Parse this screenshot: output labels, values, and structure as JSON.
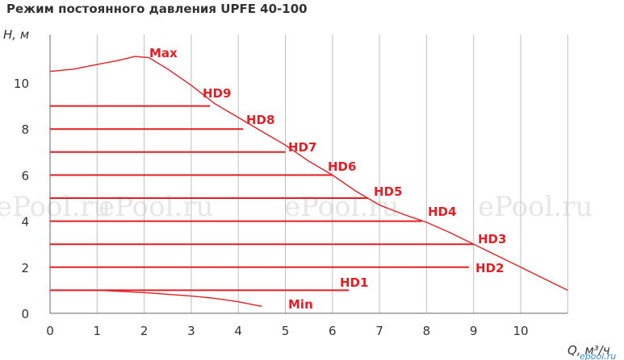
{
  "chart_data": {
    "type": "line",
    "title": "Режим постоянного давления UPFE 40-100",
    "xlabel": "Q, м³/ч",
    "ylabel": "H, м",
    "xlim": [
      0,
      11
    ],
    "ylim": [
      0,
      12
    ],
    "x_ticks": [
      "0",
      "1",
      "2",
      "3",
      "4",
      "5",
      "6",
      "7",
      "8",
      "9",
      "10"
    ],
    "y_ticks": [
      "0",
      "2",
      "4",
      "6",
      "8",
      "10"
    ],
    "grid": "vertical",
    "line_color": "#e31e24",
    "max_curve": {
      "name": "Max",
      "points": [
        [
          0,
          10.5
        ],
        [
          0.5,
          10.6
        ],
        [
          1,
          10.8
        ],
        [
          1.5,
          11.0
        ],
        [
          1.8,
          11.15
        ],
        [
          2.1,
          11.1
        ],
        [
          2.5,
          10.6
        ],
        [
          3,
          9.9
        ],
        [
          3.5,
          9.1
        ],
        [
          4,
          8.5
        ],
        [
          4.5,
          7.9
        ],
        [
          5,
          7.3
        ],
        [
          5.5,
          6.6
        ],
        [
          6,
          6.0
        ],
        [
          6.5,
          5.3
        ],
        [
          7,
          4.7
        ],
        [
          7.5,
          4.3
        ],
        [
          8,
          3.95
        ],
        [
          8.5,
          3.5
        ],
        [
          9,
          3.0
        ],
        [
          9.5,
          2.5
        ],
        [
          10,
          2.0
        ],
        [
          10.5,
          1.5
        ],
        [
          11,
          1.0
        ]
      ]
    },
    "min_curve": {
      "name": "Min",
      "points": [
        [
          0,
          1.0
        ],
        [
          1,
          1.0
        ],
        [
          2,
          0.9
        ],
        [
          3,
          0.75
        ],
        [
          3.5,
          0.65
        ],
        [
          4,
          0.5
        ],
        [
          4.5,
          0.3
        ]
      ]
    },
    "levels": [
      {
        "name": "HD1",
        "h": 1,
        "q_end": 6.35
      },
      {
        "name": "HD2",
        "h": 2,
        "q_end": 8.9
      },
      {
        "name": "HD3",
        "h": 3,
        "q_end": 9.0
      },
      {
        "name": "HD4",
        "h": 4,
        "q_end": 7.9
      },
      {
        "name": "HD5",
        "h": 5,
        "q_end": 6.75
      },
      {
        "name": "HD6",
        "h": 6,
        "q_end": 6.0
      },
      {
        "name": "HD7",
        "h": 7,
        "q_end": 5.0
      },
      {
        "name": "HD8",
        "h": 8,
        "q_end": 4.1
      },
      {
        "name": "HD9",
        "h": 9,
        "q_end": 3.4
      }
    ],
    "watermarks": [
      "ePool.ru",
      "ePool.ru",
      "ePool.ru",
      "ePool.ru"
    ],
    "corner_mark": "epool.ru"
  }
}
